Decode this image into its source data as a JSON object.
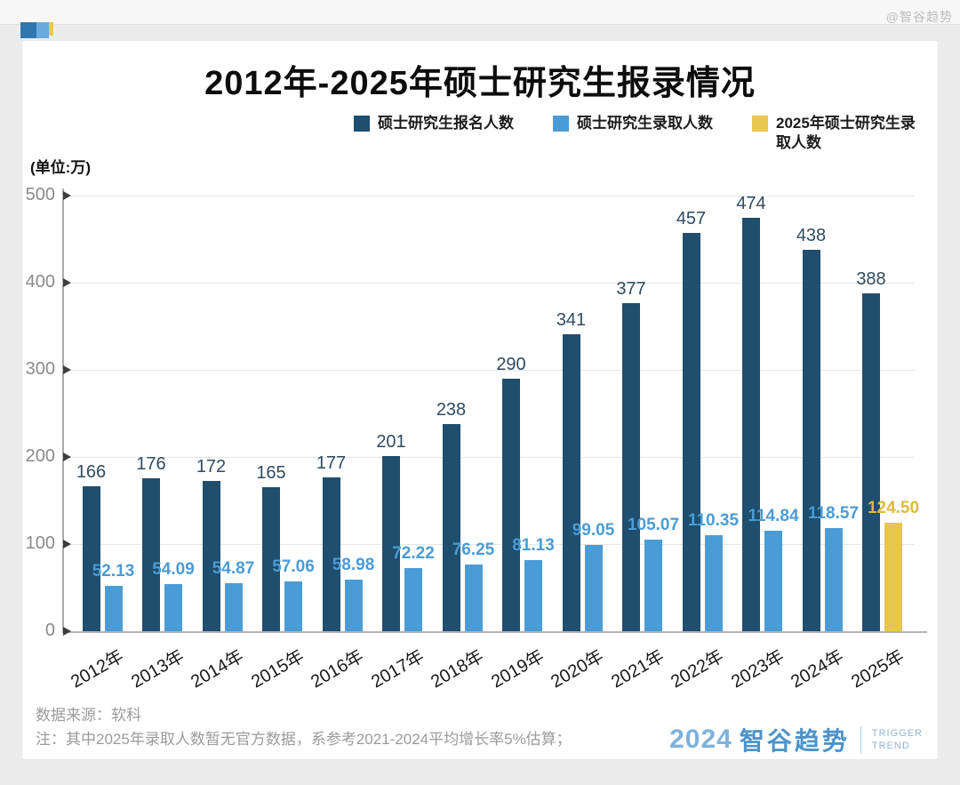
{
  "watermark": "@智谷趋势",
  "title": "2012年-2025年硕士研究生报录情况",
  "unit_label": "(单位:万)",
  "legend": [
    {
      "label": "硕士研究生报名人数",
      "color": "#1f4e6e"
    },
    {
      "label": "硕士研究生录取人数",
      "color": "#4a9cd6"
    },
    {
      "label": "2025年硕士研究生录取人数",
      "color": "#e8c84f"
    }
  ],
  "footer": {
    "source": "数据来源：软科",
    "note": "注：其中2025年录取人数暂无官方数据，系参考2021-2024平均增长率5%估算；"
  },
  "brand": {
    "year": "2024",
    "name": "智谷趋势",
    "tagline_line1": "TRIGGER",
    "tagline_line2": "TREND"
  },
  "logo_colors": {
    "dark": "#2f77ae",
    "light": "#68aadb",
    "yellow": "#e9c94e"
  },
  "chart_data": {
    "type": "bar",
    "title": "2012年-2025年硕士研究生报录情况",
    "unit": "万",
    "xlabel": "",
    "ylabel": "(单位:万)",
    "ylim": [
      0,
      500
    ],
    "yticks": [
      0,
      100,
      200,
      300,
      400,
      500
    ],
    "grid": true,
    "legend_position": "top",
    "categories": [
      "2012年",
      "2013年",
      "2014年",
      "2015年",
      "2016年",
      "2017年",
      "2018年",
      "2019年",
      "2020年",
      "2021年",
      "2022年",
      "2023年",
      "2024年",
      "2025年"
    ],
    "series": [
      {
        "name": "硕士研究生报名人数",
        "color": "#1f4e6e",
        "label_color": "#2e4b60",
        "bold_labels": false,
        "values": [
          166,
          176,
          172,
          165,
          177,
          201,
          238,
          290,
          341,
          377,
          457,
          474,
          438,
          388
        ],
        "labels": [
          "166",
          "176",
          "172",
          "165",
          "177",
          "201",
          "238",
          "290",
          "341",
          "377",
          "457",
          "474",
          "438",
          "388"
        ]
      },
      {
        "name": "硕士研究生录取人数",
        "color": "#4a9cd6",
        "label_color": "#4a9cd6",
        "bold_labels": true,
        "values": [
          52.13,
          54.09,
          54.87,
          57.06,
          58.98,
          72.22,
          76.25,
          81.13,
          99.05,
          105.07,
          110.35,
          114.84,
          118.57,
          null
        ],
        "labels": [
          "52.13",
          "54.09",
          "54.87",
          "57.06",
          "58.98",
          "72.22",
          "76.25",
          "81.13",
          "99.05",
          "105.07",
          "110.35",
          "114.84",
          "118.57",
          ""
        ]
      },
      {
        "name": "2025年硕士研究生录取人数",
        "color": "#e7c64d",
        "label_color": "#dfb93d",
        "bold_labels": true,
        "values": [
          null,
          null,
          null,
          null,
          null,
          null,
          null,
          null,
          null,
          null,
          null,
          null,
          null,
          124.5
        ],
        "labels": [
          "",
          "",
          "",
          "",
          "",
          "",
          "",
          "",
          "",
          "",
          "",
          "",
          "",
          "124.50"
        ]
      }
    ]
  }
}
